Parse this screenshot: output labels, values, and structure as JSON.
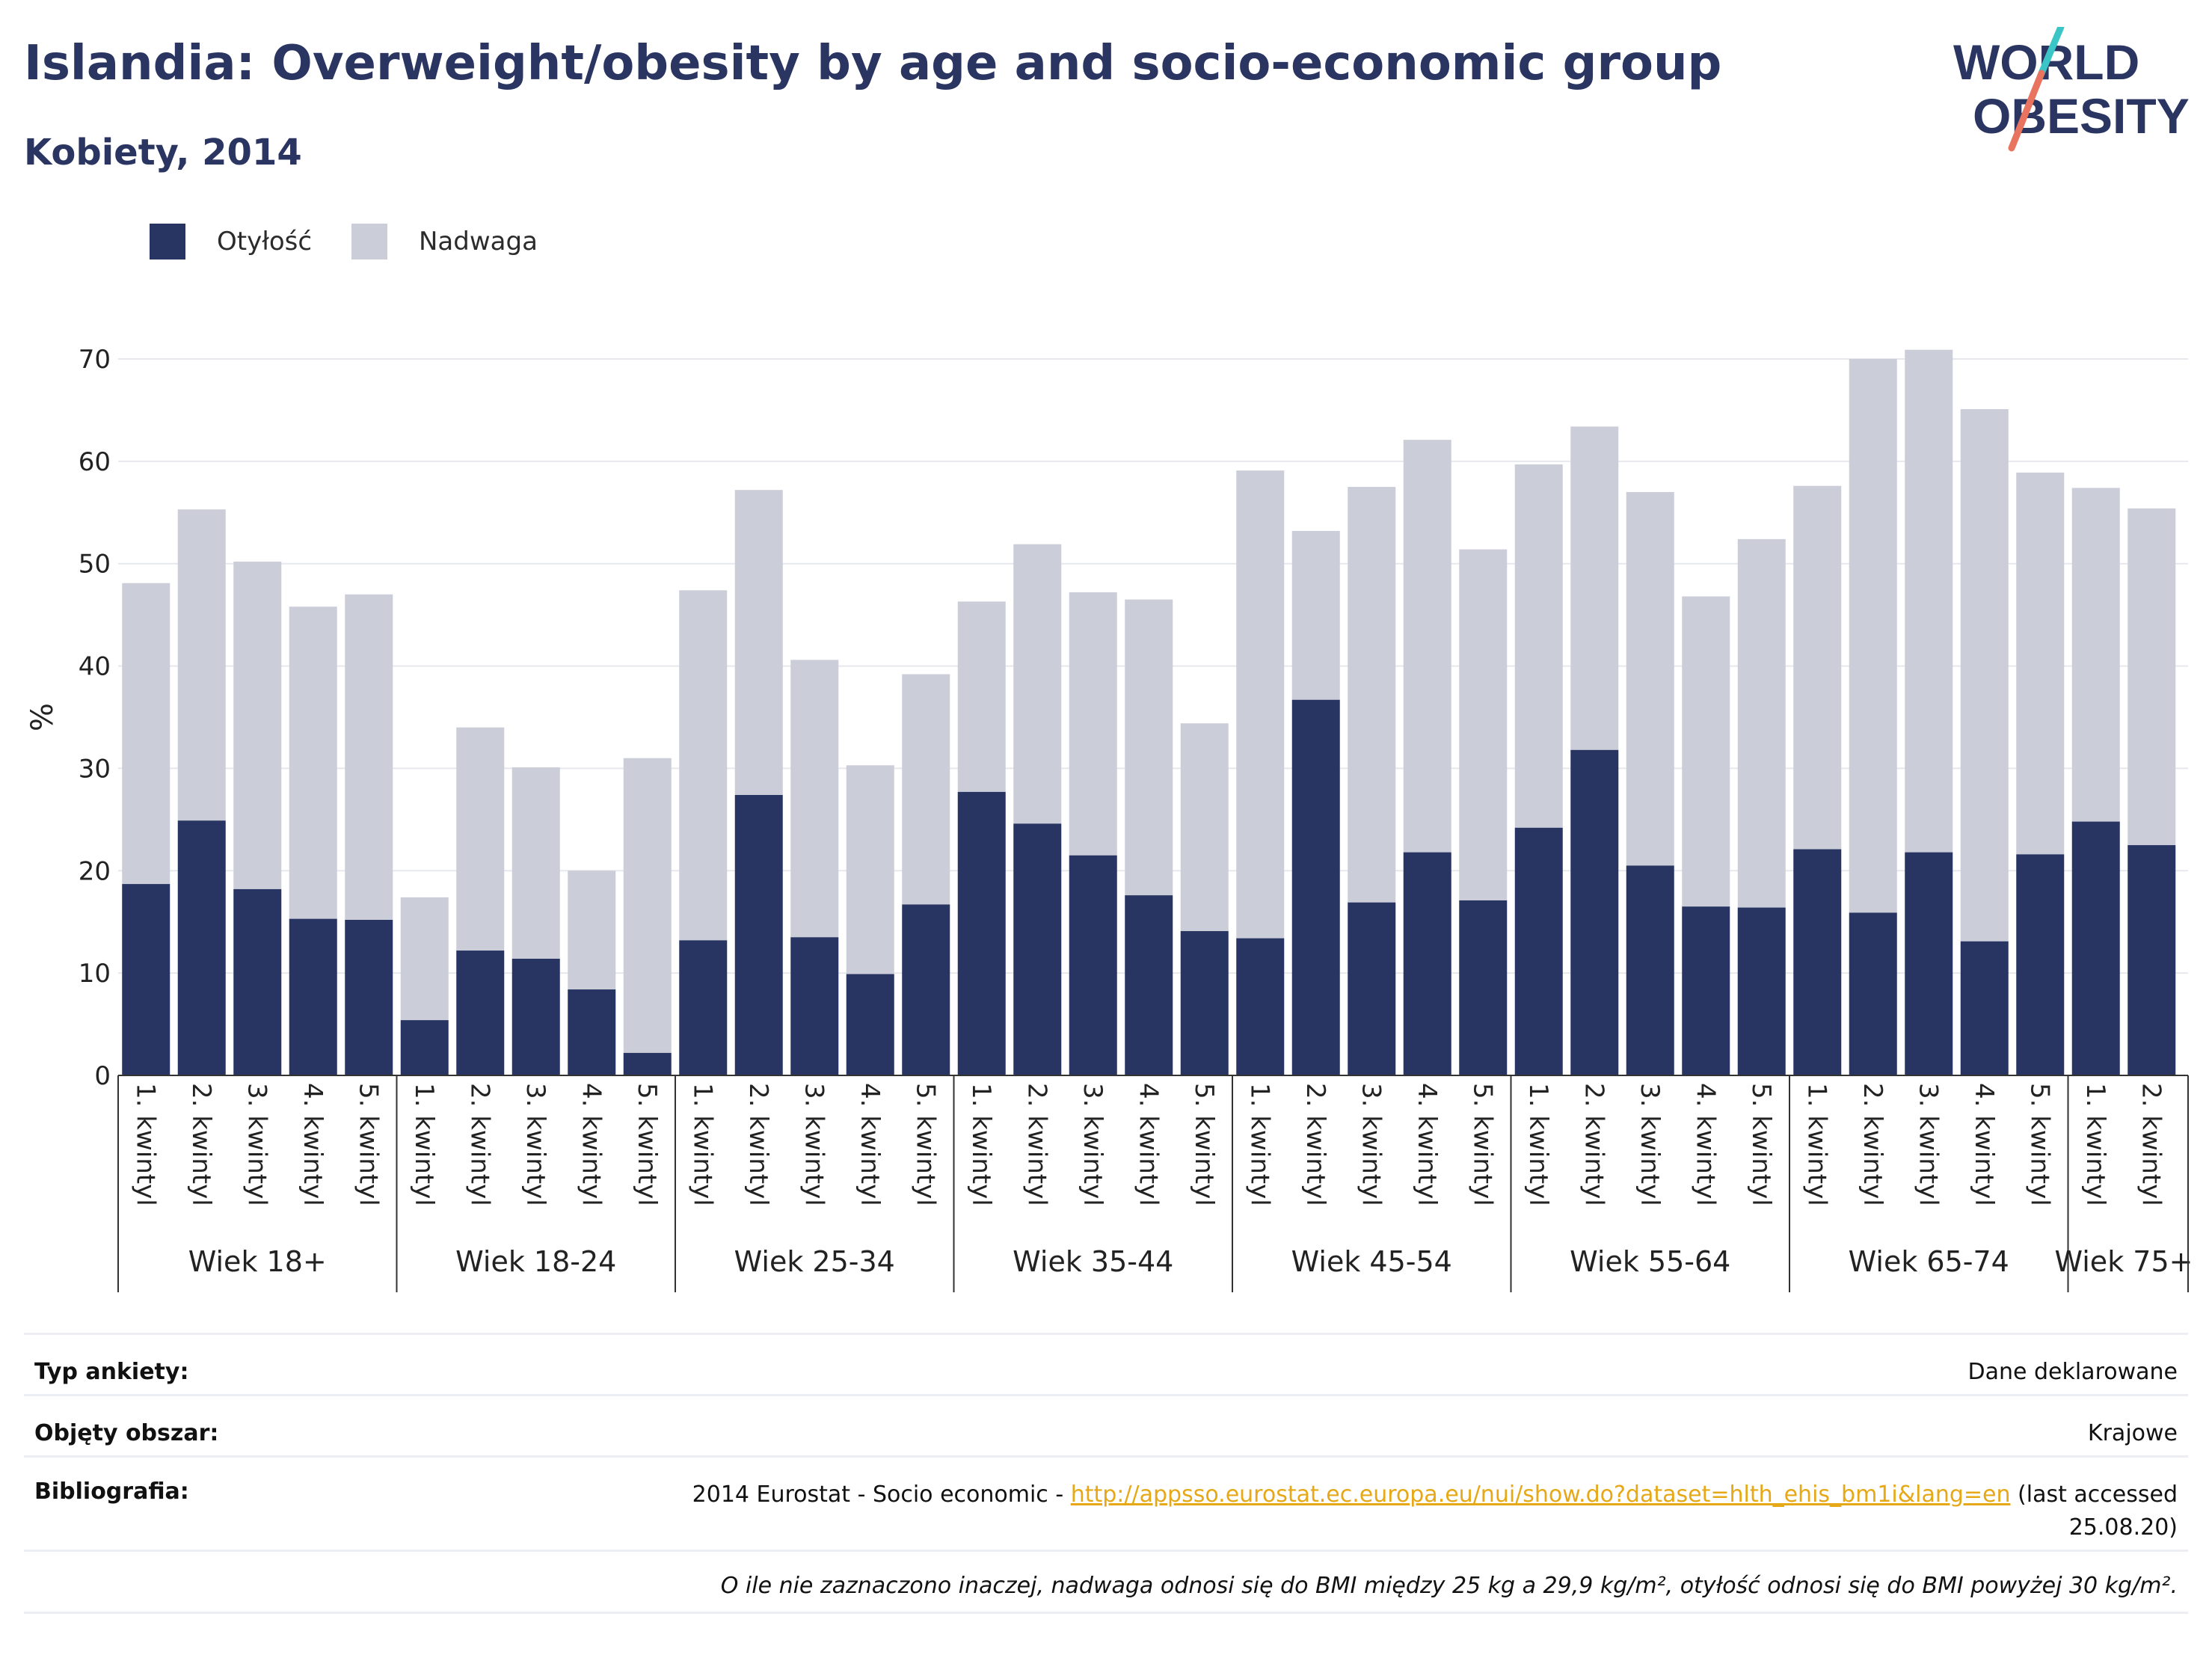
{
  "header": {
    "title": "Islandia: Overweight/obesity by age and socio-economic group",
    "subtitle": "Kobiety, 2014"
  },
  "logo": {
    "line1": "WORLD",
    "line2": "OBESITY",
    "accent_colors": [
      "#3cc5c6",
      "#e8735e"
    ]
  },
  "legend": [
    {
      "label": "Otyłość",
      "color": "#283562"
    },
    {
      "label": "Nadwaga",
      "color": "#cbcdd8"
    }
  ],
  "chart_data": {
    "type": "bar",
    "stacked": true,
    "ylabel": "%",
    "ylim": [
      0,
      70
    ],
    "yticks": [
      0,
      10,
      20,
      30,
      40,
      50,
      60,
      70
    ],
    "grid": true,
    "legend_position": "top-left",
    "groups": [
      {
        "label": "Wiek 18+",
        "categories": [
          "1. kwintyl",
          "2. kwintyl",
          "3. kwintyl",
          "4. kwintyl",
          "5. kwintyl"
        ],
        "obesity": [
          18.7,
          24.9,
          18.2,
          15.3,
          15.2
        ],
        "total": [
          48.1,
          55.3,
          50.2,
          45.8,
          47.0
        ]
      },
      {
        "label": "Wiek 18-24",
        "categories": [
          "1. kwintyl",
          "2. kwintyl",
          "3. kwintyl",
          "4. kwintyl",
          "5. kwintyl"
        ],
        "obesity": [
          5.4,
          12.2,
          11.4,
          8.4,
          2.2
        ],
        "total": [
          17.4,
          34.0,
          30.1,
          20.0,
          31.0
        ]
      },
      {
        "label": "Wiek 25-34",
        "categories": [
          "1. kwintyl",
          "2. kwintyl",
          "3. kwintyl",
          "4. kwintyl",
          "5. kwintyl"
        ],
        "obesity": [
          13.2,
          27.4,
          13.5,
          9.9,
          16.7
        ],
        "total": [
          47.4,
          57.2,
          40.6,
          30.3,
          39.2
        ]
      },
      {
        "label": "Wiek 35-44",
        "categories": [
          "1. kwintyl",
          "2. kwintyl",
          "3. kwintyl",
          "4. kwintyl",
          "5. kwintyl"
        ],
        "obesity": [
          27.7,
          24.6,
          21.5,
          17.6,
          14.1
        ],
        "total": [
          46.3,
          51.9,
          47.2,
          46.5,
          34.4
        ]
      },
      {
        "label": "Wiek 45-54",
        "categories": [
          "1. kwintyl",
          "2. kwintyl",
          "3. kwintyl",
          "4. kwintyl",
          "5. kwintyl"
        ],
        "obesity": [
          13.4,
          36.7,
          16.9,
          21.8,
          17.1
        ],
        "total": [
          59.1,
          53.2,
          57.5,
          62.1,
          51.4
        ]
      },
      {
        "label": "Wiek 55-64",
        "categories": [
          "1. kwintyl",
          "2. kwintyl",
          "3. kwintyl",
          "4. kwintyl",
          "5. kwintyl"
        ],
        "obesity": [
          24.2,
          31.8,
          20.5,
          16.5,
          16.4
        ],
        "total": [
          59.7,
          63.4,
          57.0,
          46.8,
          52.4
        ]
      },
      {
        "label": "Wiek 65-74",
        "categories": [
          "1. kwintyl",
          "2. kwintyl",
          "3. kwintyl",
          "4. kwintyl",
          "5. kwintyl"
        ],
        "obesity": [
          22.1,
          15.9,
          21.8,
          13.1,
          21.6
        ],
        "total": [
          57.6,
          70.0,
          70.9,
          65.1,
          58.9
        ]
      },
      {
        "label": "Wiek 75+",
        "categories": [
          "1. kwintyl",
          "2. kwintyl"
        ],
        "obesity": [
          24.8,
          22.5
        ],
        "total": [
          57.4,
          55.4
        ]
      }
    ]
  },
  "info": {
    "rows": [
      {
        "label": "Typ ankiety:",
        "value": "Dane deklarowane"
      },
      {
        "label": "Objęty obszar:",
        "value": "Krajowe"
      }
    ],
    "bibliography": {
      "label": "Bibliografia:",
      "prefix": "2014 Eurostat - Socio economic - ",
      "link": "http://appsso.eurostat.ec.europa.eu/nui/show.do?dataset=hlth_ehis_bm1i&lang=en",
      "suffix_line1": "(last accessed",
      "suffix_line2": "25.08.20)"
    },
    "note": "O ile nie zaznaczono inaczej, nadwaga odnosi się do BMI między 25 kg a 29,9 kg/m², otyłość odnosi się do BMI powyżej 30 kg/m²."
  }
}
